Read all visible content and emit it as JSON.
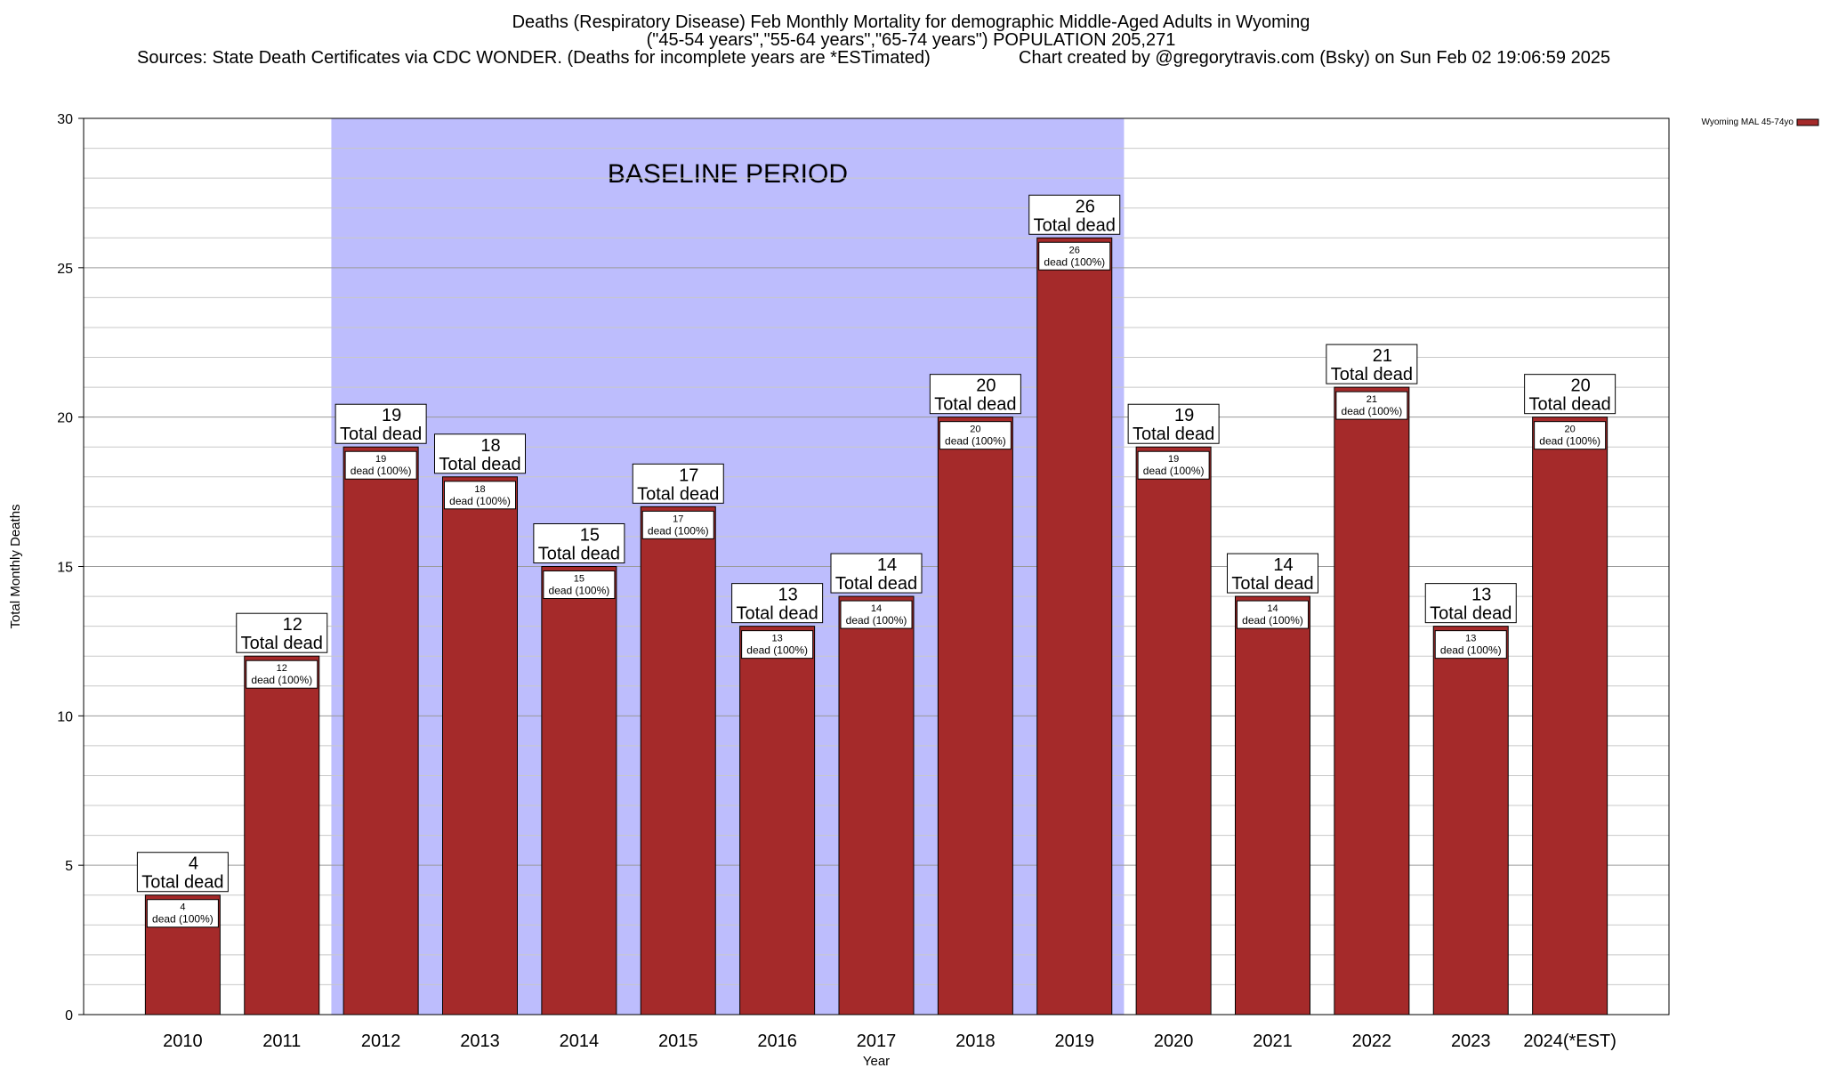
{
  "titles": {
    "line1": "Deaths (Respiratory Disease) Feb Monthly Mortality for demographic Middle-Aged Adults in Wyoming",
    "line2": "(\"45-54 years\",\"55-64 years\",\"65-74 years\") POPULATION 205,271",
    "line3_source": "Sources: State Death Certificates via CDC WONDER. (Deaths for incomplete years are *ESTimated)",
    "line3_credit": "Chart created by @gregorytravis.com (Bsky) on Sun Feb 02 19:06:59 2025"
  },
  "chart_data": {
    "type": "bar",
    "xlabel": "Year",
    "ylabel": "Total Monthly Deaths",
    "ylim": [
      0,
      30
    ],
    "yticks": [
      0,
      5,
      10,
      15,
      20,
      25,
      30
    ],
    "grid": true,
    "categories": [
      "2010",
      "2011",
      "2012",
      "2013",
      "2014",
      "2015",
      "2016",
      "2017",
      "2018",
      "2019",
      "2020",
      "2021",
      "2022",
      "2023",
      "2024(*EST)"
    ],
    "series": [
      {
        "name": "Wyoming MAL 45-74yo",
        "color": "#a52a2a",
        "values": [
          4,
          12,
          19,
          18,
          15,
          17,
          13,
          14,
          20,
          26,
          19,
          14,
          21,
          13,
          20
        ]
      }
    ],
    "total_label": "Total dead",
    "inner_label": "dead (100%)",
    "baseline": {
      "label": "BASELINE PERIOD",
      "from": "2012",
      "to": "2019",
      "color": "#bdbdfd"
    },
    "legend_position": "top-right"
  }
}
